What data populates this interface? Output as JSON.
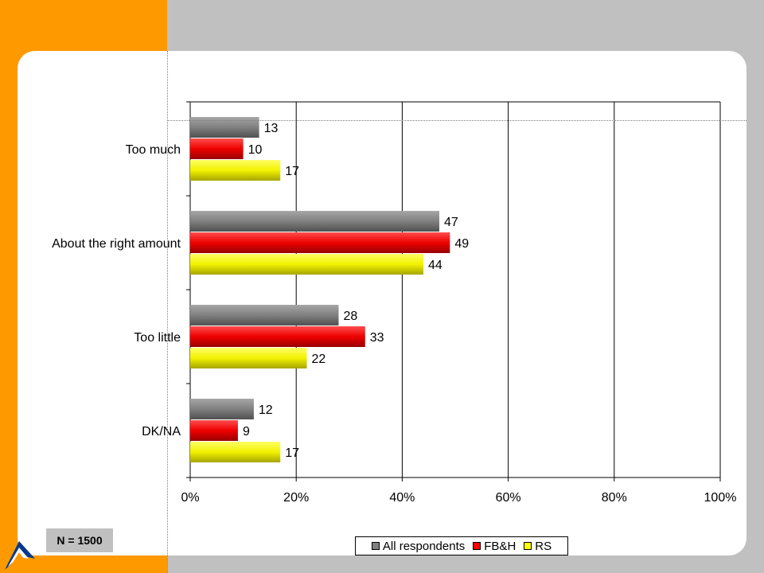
{
  "n_label": "N = 1500",
  "chart_data": {
    "type": "bar",
    "orientation": "horizontal",
    "categories": [
      "Too much",
      "About the right amount",
      "Too little",
      "DK/NA"
    ],
    "series": [
      {
        "name": "All respondents",
        "values": [
          13,
          47,
          28,
          12
        ],
        "color": "#808080"
      },
      {
        "name": "FB&H",
        "values": [
          10,
          49,
          33,
          9
        ],
        "color": "#ff0000"
      },
      {
        "name": "RS",
        "values": [
          17,
          44,
          22,
          17
        ],
        "color": "#ffff00"
      }
    ],
    "xlim": [
      0,
      100
    ],
    "x_ticks": [
      "0%",
      "20%",
      "40%",
      "60%",
      "80%",
      "100%"
    ],
    "grid": true,
    "legend_position": "bottom"
  }
}
